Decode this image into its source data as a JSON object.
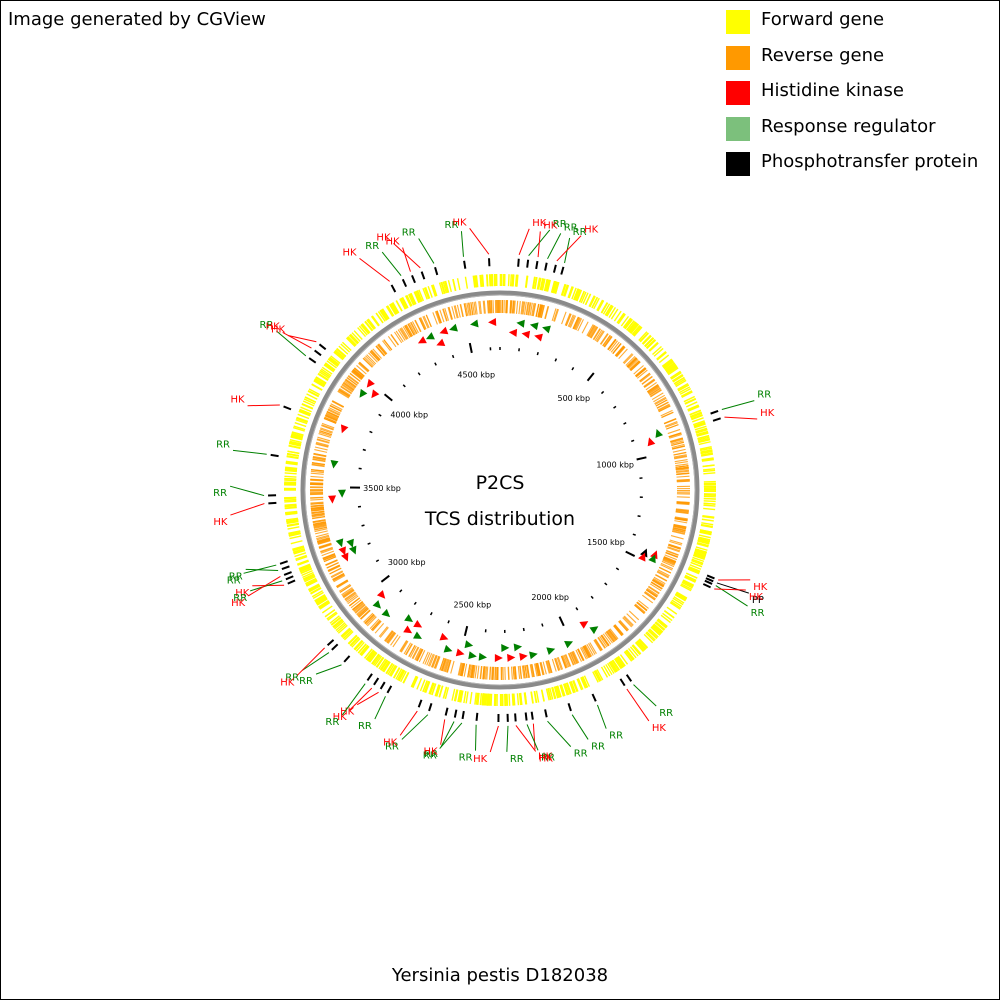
{
  "credit": "Image generated by CGView",
  "legend": [
    {
      "label": "Forward gene",
      "color": "#ffff00"
    },
    {
      "label": "Reverse gene",
      "color": "#ff9900"
    },
    {
      "label": "Histidine kinase",
      "color": "#ff0000"
    },
    {
      "label": "Response regulator",
      "color": "#7cc07c"
    },
    {
      "label": "Phosphotransfer protein",
      "color": "#000000"
    }
  ],
  "map": {
    "title_line1": "P2CS",
    "title_line2": "TCS distribution",
    "organism": "Yersinia pestis D182038",
    "genome_length_kbp": 4650,
    "tick_labels": [
      "500 kbp",
      "1000 kbp",
      "1500 kbp",
      "2000 kbp",
      "2500 kbp",
      "3000 kbp",
      "3500 kbp",
      "4000 kbp",
      "4500 kbp"
    ],
    "label_colors": {
      "HK": "#ff0000",
      "RR": "#008000",
      "PP": "#000000"
    },
    "features": [
      {
        "type": "RR",
        "kbp": 205
      },
      {
        "type": "RR",
        "kbp": 905
      },
      {
        "type": "HK",
        "kbp": 930
      },
      {
        "type": "HK",
        "kbp": 1452
      },
      {
        "type": "PP",
        "kbp": 1462
      },
      {
        "type": "RR",
        "kbp": 1471
      },
      {
        "type": "HK",
        "kbp": 1483
      },
      {
        "type": "RR",
        "kbp": 1880
      },
      {
        "type": "HK",
        "kbp": 1905
      },
      {
        "type": "RR",
        "kbp": 2010
      },
      {
        "type": "RR",
        "kbp": 2095
      },
      {
        "type": "RR",
        "kbp": 2175
      },
      {
        "type": "HK",
        "kbp": 2220
      },
      {
        "type": "RR",
        "kbp": 2240
      },
      {
        "type": "HK",
        "kbp": 2275
      },
      {
        "type": "RR",
        "kbp": 2300
      },
      {
        "type": "HK",
        "kbp": 2330
      },
      {
        "type": "RR",
        "kbp": 2400
      },
      {
        "type": "RR",
        "kbp": 2445
      },
      {
        "type": "RR",
        "kbp": 2470
      },
      {
        "type": "HK",
        "kbp": 2500
      },
      {
        "type": "RR",
        "kbp": 2555
      },
      {
        "type": "HK",
        "kbp": 2590
      },
      {
        "type": "RR",
        "kbp": 2700
      },
      {
        "type": "HK",
        "kbp": 2725
      },
      {
        "type": "HK",
        "kbp": 2750
      },
      {
        "type": "RR",
        "kbp": 2775
      },
      {
        "type": "RR",
        "kbp": 2870
      },
      {
        "type": "RR",
        "kbp": 2925
      },
      {
        "type": "HK",
        "kbp": 2945
      },
      {
        "type": "HK",
        "kbp": 3180
      },
      {
        "type": "RR",
        "kbp": 3195
      },
      {
        "type": "HK",
        "kbp": 3210
      },
      {
        "type": "RR",
        "kbp": 3230
      },
      {
        "type": "RR",
        "kbp": 3248
      },
      {
        "type": "HK",
        "kbp": 3445
      },
      {
        "type": "RR",
        "kbp": 3470
      },
      {
        "type": "RR",
        "kbp": 3600
      },
      {
        "type": "HK",
        "kbp": 3760
      },
      {
        "type": "RR",
        "kbp": 3935
      },
      {
        "type": "HK",
        "kbp": 3965
      },
      {
        "type": "HK",
        "kbp": 3990
      },
      {
        "type": "HK",
        "kbp": 4290
      },
      {
        "type": "RR",
        "kbp": 4330
      },
      {
        "type": "HK",
        "kbp": 4362
      },
      {
        "type": "HK",
        "kbp": 4395
      },
      {
        "type": "RR",
        "kbp": 4440
      },
      {
        "type": "RR",
        "kbp": 4535
      },
      {
        "type": "HK",
        "kbp": 4615
      },
      {
        "type": "HK",
        "kbp": 60
      },
      {
        "type": "RR",
        "kbp": 90
      },
      {
        "type": "HK",
        "kbp": 120
      },
      {
        "type": "RR",
        "kbp": 150
      },
      {
        "type": "HK",
        "kbp": 180
      }
    ]
  }
}
